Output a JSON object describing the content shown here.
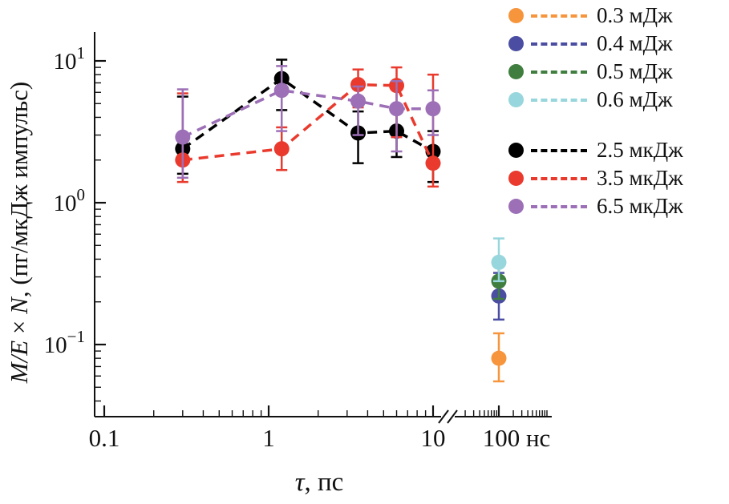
{
  "chart_data": {
    "type": "scatter",
    "title": "",
    "x_axis": {
      "label_segments": [
        {
          "text": "τ",
          "italic": true
        },
        {
          "text": ", пс",
          "italic": false
        }
      ],
      "label_plain": "τ, пс",
      "scale": "log-with-break",
      "tick_values": [
        0.1,
        1,
        10
      ],
      "tick_labels": [
        "0.1",
        "1",
        "10"
      ],
      "after_break_label": "100 нс",
      "after_break_value_ns": 100
    },
    "y_axis": {
      "label_segments": [
        {
          "text": "M/E",
          "italic": true
        },
        {
          "text": " × ",
          "italic": false
        },
        {
          "text": "N",
          "italic": true
        },
        {
          "text": ", (пг/мкДж импульс)",
          "italic": false
        }
      ],
      "label_plain": "M/E × N, (пг/мкДж импульс)",
      "scale": "log",
      "tick_exponents": [
        1,
        0,
        -1
      ],
      "range": [
        0.03,
        16
      ]
    },
    "legend_position": "top-right",
    "series": [
      {
        "name": "0.3 мДж",
        "group": "мДж",
        "color": "#F6953C",
        "x_ns": [
          100
        ],
        "y": [
          0.08
        ],
        "err_lo": [
          0.055
        ],
        "err_hi": [
          0.12
        ],
        "line_in_plot": false
      },
      {
        "name": "0.4 мДж",
        "group": "мДж",
        "color": "#4A4DA1",
        "x_ns": [
          100
        ],
        "y": [
          0.22
        ],
        "err_lo": [
          0.15
        ],
        "err_hi": [
          0.32
        ],
        "line_in_plot": false
      },
      {
        "name": "0.5 мДж",
        "group": "мДж",
        "color": "#3F7E3E",
        "x_ns": [
          100
        ],
        "y": [
          0.28
        ],
        "err_lo": [
          0.21
        ],
        "err_hi": [
          0.37
        ],
        "line_in_plot": false
      },
      {
        "name": "0.6 мДж",
        "group": "мДж",
        "color": "#97D6DC",
        "x_ns": [
          100
        ],
        "y": [
          0.38
        ],
        "err_lo": [
          0.28
        ],
        "err_hi": [
          0.56
        ],
        "line_in_plot": false
      },
      {
        "name": "2.5 мкДж",
        "group": "мкДж",
        "color": "#000000",
        "x_ps": [
          0.3,
          1.2,
          3.5,
          6,
          10
        ],
        "y": [
          2.4,
          7.5,
          3.1,
          3.2,
          2.3
        ],
        "err_lo": [
          1.6,
          4.5,
          1.9,
          2.1,
          1.4
        ],
        "err_hi": [
          5.6,
          10.2,
          4.4,
          4.3,
          3.2
        ],
        "line_in_plot": true
      },
      {
        "name": "3.5 мкДж",
        "group": "мкДж",
        "color": "#E93A2D",
        "x_ps": [
          0.3,
          1.2,
          3.5,
          6,
          10
        ],
        "y": [
          2.0,
          2.4,
          6.8,
          6.7,
          1.9
        ],
        "err_lo": [
          1.4,
          1.7,
          4.7,
          2.9,
          1.3
        ],
        "err_hi": [
          5.9,
          3.4,
          8.7,
          9.0,
          8.0
        ],
        "line_in_plot": true
      },
      {
        "name": "6.5 мкДж",
        "group": "мкДж",
        "color": "#9C6FB6",
        "x_ps": [
          0.3,
          1.2,
          3.5,
          6,
          10
        ],
        "y": [
          2.9,
          6.2,
          5.2,
          4.6,
          4.6
        ],
        "err_lo": [
          1.5,
          3.2,
          3.0,
          2.3,
          3.0
        ],
        "err_hi": [
          6.3,
          9.2,
          6.6,
          7.2,
          6.2
        ],
        "line_in_plot": true
      }
    ]
  }
}
